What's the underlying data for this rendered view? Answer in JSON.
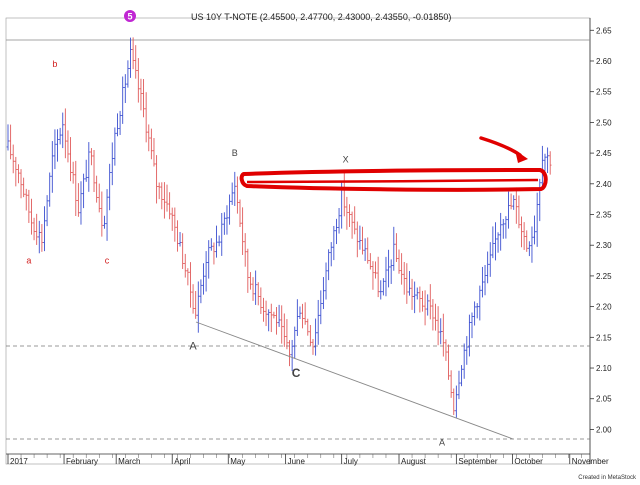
{
  "header": {
    "title": "US 10Y T-NOTE (2.45500, 2.47700, 2.43000, 2.43550, -0.01850)",
    "badge": "5",
    "badge_color": "#c026d3"
  },
  "credit": "Created in MetaStock",
  "colors": {
    "up_bar": "#3b4fd0",
    "down_bar": "#e05a5a",
    "highlight": "#e00000",
    "trendline": "#888888",
    "dashed_line": "#777777"
  },
  "chart_data": {
    "type": "bar",
    "ylim": [
      1.96,
      2.67
    ],
    "y_ticks": [
      "2.65",
      "2.60",
      "2.55",
      "2.50",
      "2.45",
      "2.40",
      "2.35",
      "2.30",
      "2.25",
      "2.20",
      "2.15",
      "2.10",
      "2.05",
      "2.00"
    ],
    "x_ticks": [
      {
        "label": "2017",
        "week": 0
      },
      {
        "label": "February",
        "week": 4.3
      },
      {
        "label": "March",
        "week": 8.3
      },
      {
        "label": "April",
        "week": 12.6
      },
      {
        "label": "May",
        "week": 16.9
      },
      {
        "label": "June",
        "week": 21.3
      },
      {
        "label": "July",
        "week": 25.6
      },
      {
        "label": "August",
        "week": 30
      },
      {
        "label": "September",
        "week": 34.4
      },
      {
        "label": "October",
        "week": 38.7
      },
      {
        "label": "November",
        "week": 43.1
      }
    ],
    "x_range_weeks": [
      0,
      44.5
    ],
    "anchors": [
      {
        "w": 0,
        "v": 2.46
      },
      {
        "w": 0.8,
        "v": 2.42
      },
      {
        "w": 1.8,
        "v": 2.34
      },
      {
        "w": 2.6,
        "v": 2.31
      },
      {
        "w": 3.4,
        "v": 2.44
      },
      {
        "w": 4.2,
        "v": 2.5
      },
      {
        "w": 5.4,
        "v": 2.36
      },
      {
        "w": 6.3,
        "v": 2.45
      },
      {
        "w": 7.3,
        "v": 2.33
      },
      {
        "w": 8.2,
        "v": 2.48
      },
      {
        "w": 9.4,
        "v": 2.61
      },
      {
        "w": 10.4,
        "v": 2.52
      },
      {
        "w": 11.4,
        "v": 2.4
      },
      {
        "w": 12.4,
        "v": 2.36
      },
      {
        "w": 13.4,
        "v": 2.28
      },
      {
        "w": 14.4,
        "v": 2.19
      },
      {
        "w": 15.2,
        "v": 2.28
      },
      {
        "w": 16.2,
        "v": 2.31
      },
      {
        "w": 17.4,
        "v": 2.4
      },
      {
        "w": 18.4,
        "v": 2.25
      },
      {
        "w": 19.6,
        "v": 2.2
      },
      {
        "w": 20.6,
        "v": 2.18
      },
      {
        "w": 21.6,
        "v": 2.12
      },
      {
        "w": 22.4,
        "v": 2.2
      },
      {
        "w": 23.4,
        "v": 2.14
      },
      {
        "w": 24.6,
        "v": 2.28
      },
      {
        "w": 25.6,
        "v": 2.38
      },
      {
        "w": 26.6,
        "v": 2.32
      },
      {
        "w": 27.6,
        "v": 2.28
      },
      {
        "w": 28.6,
        "v": 2.22
      },
      {
        "w": 29.6,
        "v": 2.29
      },
      {
        "w": 30.6,
        "v": 2.23
      },
      {
        "w": 31.6,
        "v": 2.21
      },
      {
        "w": 32.6,
        "v": 2.19
      },
      {
        "w": 33.4,
        "v": 2.14
      },
      {
        "w": 34.2,
        "v": 2.04
      },
      {
        "w": 34.8,
        "v": 2.11
      },
      {
        "w": 35.8,
        "v": 2.2
      },
      {
        "w": 36.8,
        "v": 2.26
      },
      {
        "w": 37.8,
        "v": 2.34
      },
      {
        "w": 38.8,
        "v": 2.37
      },
      {
        "w": 39.8,
        "v": 2.3
      },
      {
        "w": 40.4,
        "v": 2.33
      },
      {
        "w": 41.0,
        "v": 2.45
      },
      {
        "w": 41.6,
        "v": 2.44
      }
    ],
    "annotations": [
      {
        "text": "b",
        "w": 3.6,
        "v": 2.59,
        "style": "red"
      },
      {
        "text": "a",
        "w": 1.6,
        "v": 2.27,
        "style": "red"
      },
      {
        "text": "c",
        "w": 7.6,
        "v": 2.27,
        "style": "red"
      },
      {
        "text": "B",
        "w": 17.4,
        "v": 2.445,
        "style": "grey-small"
      },
      {
        "text": "X",
        "w": 25.9,
        "v": 2.435,
        "style": "grey-small"
      },
      {
        "text": "A",
        "w": 14.2,
        "v": 2.13,
        "style": "grey"
      },
      {
        "text": "C",
        "w": 22.1,
        "v": 2.085,
        "style": "grey-bold"
      },
      {
        "text": "A",
        "w": 33.3,
        "v": 1.974,
        "style": "grey-small"
      }
    ],
    "grid": false
  }
}
